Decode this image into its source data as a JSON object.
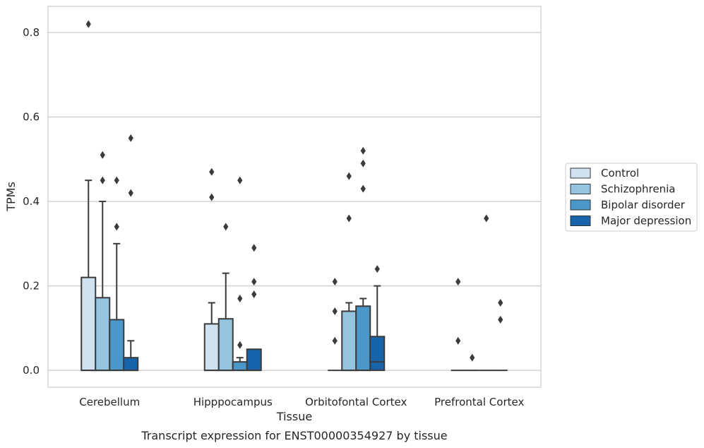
{
  "chart_data": {
    "type": "box",
    "title": "",
    "caption": "Transcript expression for ENST00000354927 by tissue",
    "xlabel": "Tissue",
    "ylabel": "TPMs",
    "ylim": [
      -0.04,
      0.862
    ],
    "yticks": [
      "0.0",
      "0.2",
      "0.4",
      "0.6",
      "0.8"
    ],
    "ytick_values": [
      0.0,
      0.2,
      0.4,
      0.6,
      0.8
    ],
    "grid": "horizontal",
    "legend_position": "right",
    "categories": [
      "Cerebellum",
      "Hipppocampus",
      "Orbitofontal Cortex",
      "Prefrontal Cortex"
    ],
    "series": [
      {
        "name": "Control",
        "color": "#d0e1f2",
        "boxes": [
          {
            "q1": 0.0,
            "median": 0.0,
            "q3": 0.22,
            "whislo": 0.0,
            "whishi": 0.45,
            "fliers": [
              0.82
            ]
          },
          {
            "q1": 0.0,
            "median": 0.0,
            "q3": 0.11,
            "whislo": 0.0,
            "whishi": 0.16,
            "fliers": [
              0.47,
              0.41
            ]
          },
          {
            "q1": 0.0,
            "median": 0.0,
            "q3": 0.0,
            "whislo": 0.0,
            "whishi": 0.0,
            "fliers": [
              0.21,
              0.14,
              0.07
            ]
          },
          {
            "q1": 0.0,
            "median": 0.0,
            "q3": 0.0,
            "whislo": 0.0,
            "whishi": 0.0,
            "fliers": [
              0.21,
              0.07
            ]
          }
        ]
      },
      {
        "name": "Schizophrenia",
        "color": "#94c4df",
        "boxes": [
          {
            "q1": 0.0,
            "median": 0.0,
            "q3": 0.172,
            "whislo": 0.0,
            "whishi": 0.4,
            "fliers": [
              0.51,
              0.45
            ]
          },
          {
            "q1": 0.0,
            "median": 0.0,
            "q3": 0.122,
            "whislo": 0.0,
            "whishi": 0.23,
            "fliers": [
              0.34
            ]
          },
          {
            "q1": 0.0,
            "median": 0.0,
            "q3": 0.14,
            "whislo": 0.0,
            "whishi": 0.16,
            "fliers": [
              0.46,
              0.36
            ]
          },
          {
            "q1": 0.0,
            "median": 0.0,
            "q3": 0.0,
            "whislo": 0.0,
            "whishi": 0.0,
            "fliers": [
              0.03
            ]
          }
        ]
      },
      {
        "name": "Bipolar disorder",
        "color": "#4a98c9",
        "boxes": [
          {
            "q1": 0.0,
            "median": 0.0,
            "q3": 0.12,
            "whislo": 0.0,
            "whishi": 0.3,
            "fliers": [
              0.45,
              0.34
            ]
          },
          {
            "q1": 0.0,
            "median": 0.0,
            "q3": 0.02,
            "whislo": 0.0,
            "whishi": 0.03,
            "fliers": [
              0.45,
              0.17,
              0.06
            ]
          },
          {
            "q1": 0.0,
            "median": 0.0,
            "q3": 0.152,
            "whislo": 0.0,
            "whishi": 0.17,
            "fliers": [
              0.52,
              0.49,
              0.43
            ]
          },
          {
            "q1": 0.0,
            "median": 0.0,
            "q3": 0.0,
            "whislo": 0.0,
            "whishi": 0.0,
            "fliers": [
              0.36
            ]
          }
        ]
      },
      {
        "name": "Major depression",
        "color": "#1764ab",
        "boxes": [
          {
            "q1": 0.0,
            "median": 0.0,
            "q3": 0.03,
            "whislo": 0.0,
            "whishi": 0.07,
            "fliers": [
              0.55,
              0.42
            ]
          },
          {
            "q1": 0.0,
            "median": 0.0,
            "q3": 0.05,
            "whislo": 0.0,
            "whishi": 0.05,
            "fliers": [
              0.29,
              0.21,
              0.18
            ]
          },
          {
            "q1": 0.0,
            "median": 0.02,
            "q3": 0.08,
            "whislo": 0.0,
            "whishi": 0.2,
            "fliers": [
              0.24
            ]
          },
          {
            "q1": 0.0,
            "median": 0.0,
            "q3": 0.0,
            "whislo": 0.0,
            "whishi": 0.0,
            "fliers": [
              0.16,
              0.12
            ]
          }
        ]
      }
    ]
  }
}
